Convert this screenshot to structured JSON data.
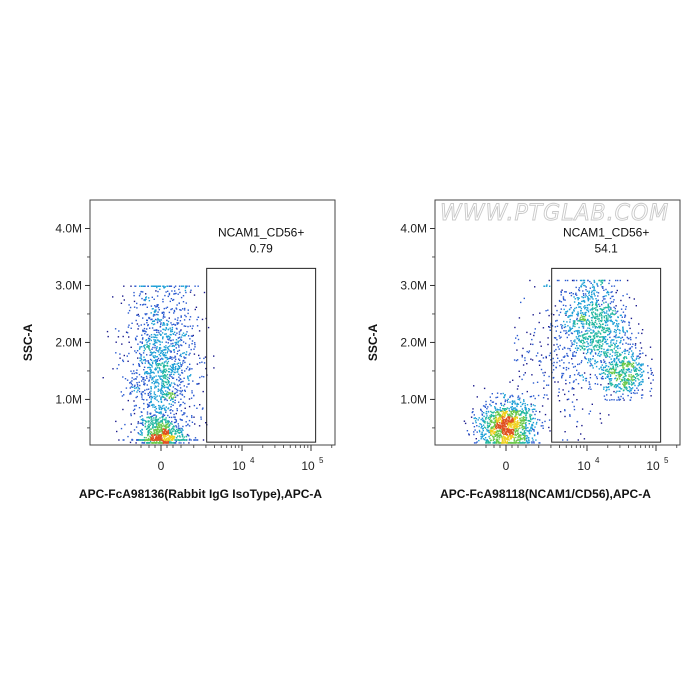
{
  "watermark": "WWW.PTGLAB.COM",
  "palette": [
    "#1a1a8c",
    "#2a5ad0",
    "#1c9fd6",
    "#22b7a0",
    "#6bc94a",
    "#f0d020",
    "#e05020"
  ],
  "chart_data": [
    {
      "type": "scatter",
      "subtype": "flow-cytometry-density-dot-plot",
      "xlabel": "APC-FcA98136(Rabbit IgG IsoType),APC-A",
      "ylabel": "SSC-A",
      "x_scale": "biexponential",
      "x_ticks": [
        {
          "value": 0,
          "base": "0",
          "exp": ""
        },
        {
          "value": 10000,
          "base": "10",
          "exp": "4"
        },
        {
          "value": 100000,
          "base": "10",
          "exp": "5"
        }
      ],
      "y_ticks": [
        {
          "value": 1000000,
          "label": "1.0M"
        },
        {
          "value": 2000000,
          "label": "2.0M"
        },
        {
          "value": 3000000,
          "label": "3.0M"
        },
        {
          "value": 4000000,
          "label": "4.0M"
        }
      ],
      "ylim": [
        200000,
        4500000
      ],
      "gate": {
        "name": "NCAM1_CD56+",
        "percent": "0.79",
        "x_min": 2500,
        "x_max": 180000,
        "y_min": 250000,
        "y_max": 3300000
      },
      "populations": [
        {
          "x_center": 0,
          "x_spread": 900,
          "y_center": 1500000,
          "y_spread": 800000,
          "y_min": 300000,
          "y_max": 3000000,
          "count": 1500
        },
        {
          "x_center": 0,
          "x_spread": 500,
          "y_center": 400000,
          "y_spread": 150000,
          "y_min": 250000,
          "y_max": 900000,
          "count": 500
        }
      ]
    },
    {
      "type": "scatter",
      "subtype": "flow-cytometry-density-dot-plot",
      "xlabel": "APC-FcA98118(NCAM1/CD56),APC-A",
      "ylabel": "SSC-A",
      "x_scale": "biexponential",
      "x_ticks": [
        {
          "value": 0,
          "base": "0",
          "exp": ""
        },
        {
          "value": 10000,
          "base": "10",
          "exp": "4"
        },
        {
          "value": 100000,
          "base": "10",
          "exp": "5"
        }
      ],
      "y_ticks": [
        {
          "value": 1000000,
          "label": "1.0M"
        },
        {
          "value": 2000000,
          "label": "2.0M"
        },
        {
          "value": 3000000,
          "label": "3.0M"
        },
        {
          "value": 4000000,
          "label": "4.0M"
        }
      ],
      "ylim": [
        200000,
        4500000
      ],
      "gate": {
        "name": "NCAM1_CD56+",
        "percent": "54.1",
        "x_min": 2500,
        "x_max": 180000,
        "y_min": 250000,
        "y_max": 3300000
      },
      "populations": [
        {
          "x_center": 0,
          "x_spread": 700,
          "y_center": 550000,
          "y_spread": 220000,
          "y_min": 250000,
          "y_max": 1300000,
          "count": 1100
        },
        {
          "x_center": 12000,
          "x_spread": 0.3,
          "y_center": 2350000,
          "y_spread": 420000,
          "y_min": 1200000,
          "y_max": 3100000,
          "count": 900
        },
        {
          "x_center": 40000,
          "x_spread": 0.2,
          "y_center": 1500000,
          "y_spread": 250000,
          "y_min": 1000000,
          "y_max": 2100000,
          "count": 500
        },
        {
          "x_center": 3000,
          "x_spread": 0.5,
          "y_center": 1500000,
          "y_spread": 600000,
          "y_min": 300000,
          "y_max": 3000000,
          "count": 250
        }
      ]
    }
  ]
}
